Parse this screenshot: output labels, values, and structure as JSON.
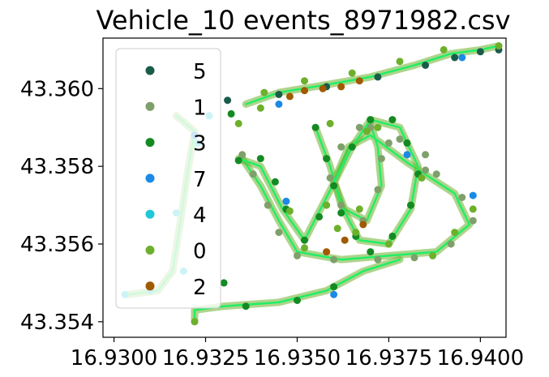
{
  "chart_data": {
    "type": "scatter",
    "title": "Vehicle_10 events_8971982.csv",
    "xlabel": "",
    "ylabel": "",
    "xlim": [
      16.9297,
      16.9407
    ],
    "ylim": [
      43.3536,
      43.3613
    ],
    "x_ticks": [
      {
        "value": 16.93,
        "label": "16.9300"
      },
      {
        "value": 16.9325,
        "label": "16.9325"
      },
      {
        "value": 16.935,
        "label": "16.9350"
      },
      {
        "value": 16.9375,
        "label": "16.9375"
      },
      {
        "value": 16.94,
        "label": "16.9400"
      }
    ],
    "y_ticks": [
      {
        "value": 43.354,
        "label": "43.354"
      },
      {
        "value": 43.356,
        "label": "43.356"
      },
      {
        "value": 43.358,
        "label": "43.358"
      },
      {
        "value": 43.36,
        "label": "43.360"
      }
    ],
    "grid": false,
    "legend_position": "upper-left",
    "legend": [
      {
        "label": "5",
        "color": "#1a5c4a"
      },
      {
        "label": "1",
        "color": "#7fa06a"
      },
      {
        "label": "3",
        "color": "#138a22"
      },
      {
        "label": "7",
        "color": "#1a8ae6"
      },
      {
        "label": "4",
        "color": "#1fc8d8"
      },
      {
        "label": "0",
        "color": "#6db02c"
      },
      {
        "label": "2",
        "color": "#a05a00"
      }
    ],
    "route_color": "#22ee66",
    "series": [
      {
        "name": "5",
        "color": "#1a5c4a",
        "points": [
          [
            16.9331,
            43.3597
          ],
          [
            16.9345,
            43.35985
          ],
          [
            16.9358,
            43.36005
          ],
          [
            16.9372,
            43.3603
          ],
          [
            16.9385,
            43.3606
          ],
          [
            16.9393,
            43.3608
          ],
          [
            16.94,
            43.36095
          ],
          [
            16.9405,
            43.361
          ]
        ]
      },
      {
        "name": "1",
        "color": "#7fa06a",
        "points": [
          [
            16.9335,
            43.3583
          ],
          [
            16.9338,
            43.3578
          ],
          [
            16.9342,
            43.357
          ],
          [
            16.9345,
            43.3563
          ],
          [
            16.935,
            43.3557
          ],
          [
            16.936,
            43.3556
          ],
          [
            16.9372,
            43.3556
          ],
          [
            16.9382,
            43.35565
          ],
          [
            16.9392,
            43.356
          ],
          [
            16.9398,
            43.3566
          ],
          [
            16.9395,
            43.3572
          ],
          [
            16.9385,
            43.3579
          ],
          [
            16.9375,
            43.3586
          ],
          [
            16.9367,
            43.359
          ],
          [
            16.9362,
            43.3585
          ],
          [
            16.9359,
            43.3577
          ],
          [
            16.9362,
            43.357
          ],
          [
            16.9368,
            43.3566
          ],
          [
            16.9372,
            43.3574
          ],
          [
            16.9373,
            43.3582
          ],
          [
            16.937,
            43.359
          ],
          [
            16.9378,
            43.3587
          ],
          [
            16.9385,
            43.3583
          ],
          [
            16.9388,
            43.3578
          ]
        ]
      },
      {
        "name": "3",
        "color": "#138a22",
        "points": [
          [
            16.9355,
            43.359
          ],
          [
            16.9358,
            43.3582
          ],
          [
            16.936,
            43.3575
          ],
          [
            16.9362,
            43.3568
          ],
          [
            16.9366,
            43.3562
          ],
          [
            16.937,
            43.3558
          ],
          [
            16.9376,
            43.3562
          ],
          [
            16.9381,
            43.357
          ],
          [
            16.9383,
            43.3578
          ],
          [
            16.938,
            43.3586
          ],
          [
            16.9376,
            43.3592
          ],
          [
            16.937,
            43.3592
          ],
          [
            16.9365,
            43.3585
          ],
          [
            16.9356,
            43.3567
          ],
          [
            16.9352,
            43.3561
          ],
          [
            16.9347,
            43.3569
          ],
          [
            16.9344,
            43.3576
          ],
          [
            16.934,
            43.3582
          ],
          [
            16.9334,
            43.35815
          ],
          [
            16.9332,
            43.35935
          ],
          [
            16.933,
            43.355
          ],
          [
            16.9336,
            43.3544
          ],
          [
            16.935,
            43.35455
          ],
          [
            16.936,
            43.3549
          ]
        ]
      },
      {
        "name": "7",
        "color": "#1a8ae6",
        "points": [
          [
            16.9345,
            43.3596
          ],
          [
            16.9398,
            43.35725
          ],
          [
            16.9347,
            43.3571
          ],
          [
            16.938,
            43.3583
          ],
          [
            16.936,
            43.3547
          ],
          [
            16.9322,
            43.3588
          ],
          [
            16.9395,
            43.3608
          ]
        ]
      },
      {
        "name": "4",
        "color": "#1fc8d8",
        "points": [
          [
            16.9323,
            43.3586
          ],
          [
            16.9326,
            43.3593
          ],
          [
            16.9319,
            43.3553
          ],
          [
            16.931,
            43.3548
          ],
          [
            16.9303,
            43.3547
          ],
          [
            16.9317,
            43.3568
          ]
        ]
      },
      {
        "name": "0",
        "color": "#6db02c",
        "points": [
          [
            16.934,
            43.3595
          ],
          [
            16.9334,
            43.3591
          ],
          [
            16.9341,
            43.3599
          ],
          [
            16.9352,
            43.3602
          ],
          [
            16.9365,
            43.3604
          ],
          [
            16.9378,
            43.3607
          ],
          [
            16.939,
            43.361
          ],
          [
            16.9405,
            43.3611
          ],
          [
            16.9398,
            43.3569
          ],
          [
            16.9372,
            43.359
          ],
          [
            16.9359,
            43.3591
          ],
          [
            16.9369,
            43.3589
          ],
          [
            16.9384,
            43.3577
          ],
          [
            16.9348,
            43.35685
          ],
          [
            16.9361,
            43.3564
          ],
          [
            16.9358,
            43.357
          ],
          [
            16.9367,
            43.3569
          ],
          [
            16.9375,
            43.356
          ],
          [
            16.9387,
            43.3557
          ],
          [
            16.9393,
            43.3563
          ],
          [
            16.9352,
            43.3559
          ],
          [
            16.9366,
            43.3563
          ],
          [
            16.9322,
            43.354
          ]
        ]
      },
      {
        "name": "2",
        "color": "#a05a00",
        "points": [
          [
            16.9348,
            43.3598
          ],
          [
            16.9352,
            43.35995
          ],
          [
            16.9357,
            43.36
          ],
          [
            16.9362,
            43.36005
          ],
          [
            16.9367,
            43.3602
          ],
          [
            16.9358,
            43.3558
          ],
          [
            16.9363,
            43.3561
          ],
          [
            16.9368,
            43.3565
          ]
        ]
      }
    ],
    "routes": [
      [
        [
          16.9336,
          43.3596
        ],
        [
          16.9345,
          43.3599
        ],
        [
          16.9358,
          43.3601
        ],
        [
          16.937,
          43.3603
        ],
        [
          16.9382,
          43.3606
        ],
        [
          16.9392,
          43.3609
        ],
        [
          16.94,
          43.361
        ],
        [
          16.9405,
          43.3611
        ]
      ],
      [
        [
          16.9335,
          43.3582
        ],
        [
          16.934,
          43.3575
        ],
        [
          16.9345,
          43.3566
        ],
        [
          16.935,
          43.3558
        ],
        [
          16.9362,
          43.3556
        ],
        [
          16.9375,
          43.3557
        ],
        [
          16.9388,
          43.3558
        ],
        [
          16.9397,
          43.3565
        ],
        [
          16.9393,
          43.3573
        ],
        [
          16.938,
          43.3581
        ],
        [
          16.937,
          43.3588
        ],
        [
          16.9364,
          43.3585
        ],
        [
          16.936,
          43.3576
        ],
        [
          16.9363,
          43.3569
        ],
        [
          16.9369,
          43.3566
        ],
        [
          16.9373,
          43.3575
        ],
        [
          16.9372,
          43.3585
        ],
        [
          16.937,
          43.3591
        ]
      ],
      [
        [
          16.9355,
          43.359
        ],
        [
          16.9359,
          43.358
        ],
        [
          16.9362,
          43.357
        ],
        [
          16.9367,
          43.3561
        ],
        [
          16.9375,
          43.356
        ],
        [
          16.9381,
          43.3569
        ],
        [
          16.9383,
          43.358
        ],
        [
          16.9378,
          43.359
        ],
        [
          16.937,
          43.3592
        ],
        [
          16.9365,
          43.3585
        ],
        [
          16.9358,
          43.3572
        ],
        [
          16.9352,
          43.3561
        ],
        [
          16.9346,
          43.3569
        ],
        [
          16.934,
          43.358
        ],
        [
          16.9334,
          43.3582
        ]
      ],
      [
        [
          16.9322,
          43.354
        ],
        [
          16.9322,
          43.3543
        ],
        [
          16.933,
          43.3544
        ],
        [
          16.9345,
          43.3545
        ],
        [
          16.9358,
          43.3548
        ],
        [
          16.9368,
          43.3553
        ],
        [
          16.9378,
          43.3556
        ]
      ],
      [
        [
          16.9317,
          43.3593
        ],
        [
          16.9322,
          43.3589
        ],
        [
          16.932,
          43.3578
        ],
        [
          16.9318,
          43.3565
        ],
        [
          16.9316,
          43.3553
        ],
        [
          16.9312,
          43.3548
        ],
        [
          16.9304,
          43.3547
        ]
      ]
    ]
  }
}
